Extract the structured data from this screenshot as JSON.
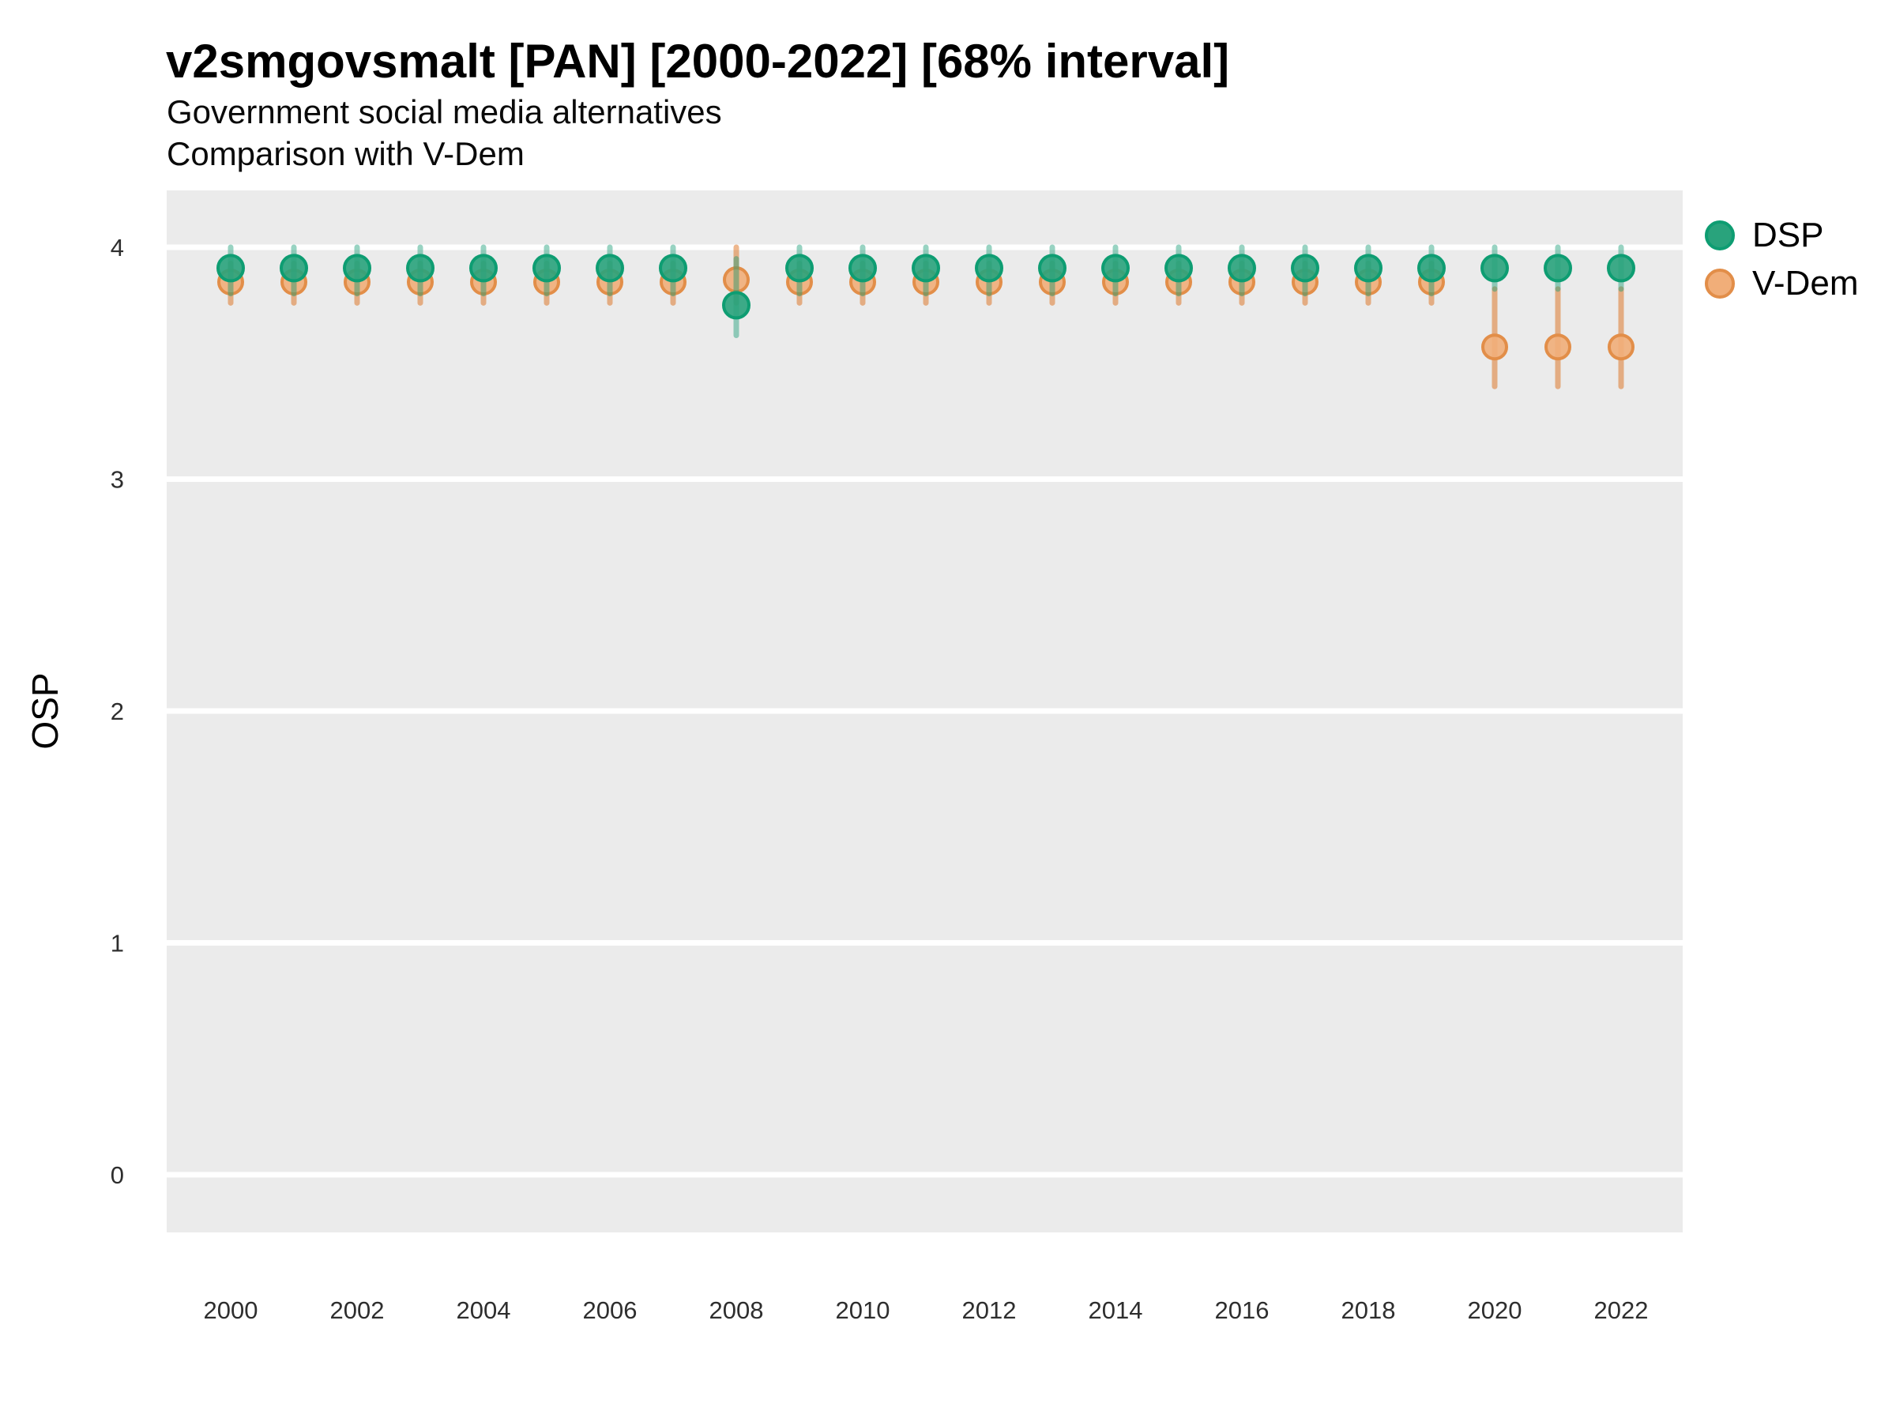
{
  "chart_data": {
    "type": "pointrange",
    "title": "v2smgovsmalt [PAN] [2000-2022] [68% interval]",
    "subtitle_line1": "Government social media alternatives",
    "subtitle_line2": "Comparison with V-Dem",
    "ylabel": "OSP",
    "xlabel": "",
    "xlim": [
      1999,
      2023
    ],
    "ylim": [
      -0.25,
      4.25
    ],
    "grid": "major-horizontal-white-on-gray",
    "legend_position": "top-right",
    "panel_color": "#EBEBEB",
    "gridline_color": "#FFFFFF",
    "x": [
      2000,
      2001,
      2002,
      2003,
      2004,
      2005,
      2006,
      2007,
      2008,
      2009,
      2010,
      2011,
      2012,
      2013,
      2014,
      2015,
      2016,
      2017,
      2018,
      2019,
      2020,
      2021,
      2022
    ],
    "x_ticks": [
      2000,
      2002,
      2004,
      2006,
      2008,
      2010,
      2012,
      2014,
      2016,
      2018,
      2020,
      2022
    ],
    "y_ticks": [
      0,
      1,
      2,
      3,
      4
    ],
    "series": [
      {
        "name": "DSP",
        "point_color": "#29A37C",
        "point_stroke": "#0E9D72",
        "bar_color": "rgba(27,158,119,0.45)",
        "est": [
          3.91,
          3.91,
          3.91,
          3.91,
          3.91,
          3.91,
          3.91,
          3.91,
          3.75,
          3.91,
          3.91,
          3.91,
          3.91,
          3.91,
          3.91,
          3.91,
          3.91,
          3.91,
          3.91,
          3.91,
          3.91,
          3.91,
          3.91
        ],
        "lo": [
          3.8,
          3.8,
          3.8,
          3.8,
          3.8,
          3.8,
          3.8,
          3.8,
          3.62,
          3.8,
          3.8,
          3.8,
          3.8,
          3.8,
          3.8,
          3.8,
          3.8,
          3.8,
          3.8,
          3.8,
          3.82,
          3.82,
          3.82
        ],
        "hi": [
          4.0,
          4.0,
          4.0,
          4.0,
          4.0,
          4.0,
          4.0,
          4.0,
          3.95,
          4.0,
          4.0,
          4.0,
          4.0,
          4.0,
          4.0,
          4.0,
          4.0,
          4.0,
          4.0,
          4.0,
          4.0,
          4.0,
          4.0
        ]
      },
      {
        "name": "V-Dem",
        "point_color": "#F1AE79",
        "point_stroke": "#E28E49",
        "bar_color": "rgba(217,95,2,0.45)",
        "est": [
          3.85,
          3.85,
          3.85,
          3.85,
          3.85,
          3.85,
          3.85,
          3.85,
          3.86,
          3.85,
          3.85,
          3.85,
          3.85,
          3.85,
          3.85,
          3.85,
          3.85,
          3.85,
          3.85,
          3.85,
          3.57,
          3.57,
          3.57
        ],
        "lo": [
          3.76,
          3.76,
          3.76,
          3.76,
          3.76,
          3.76,
          3.76,
          3.76,
          3.76,
          3.76,
          3.76,
          3.76,
          3.76,
          3.76,
          3.76,
          3.76,
          3.76,
          3.76,
          3.76,
          3.76,
          3.4,
          3.4,
          3.4
        ],
        "hi": [
          3.93,
          3.93,
          3.93,
          3.93,
          3.93,
          3.93,
          3.93,
          3.93,
          4.0,
          3.93,
          3.93,
          3.93,
          3.93,
          3.93,
          3.93,
          3.93,
          3.93,
          3.93,
          3.93,
          3.93,
          3.82,
          3.82,
          3.82
        ]
      }
    ]
  }
}
